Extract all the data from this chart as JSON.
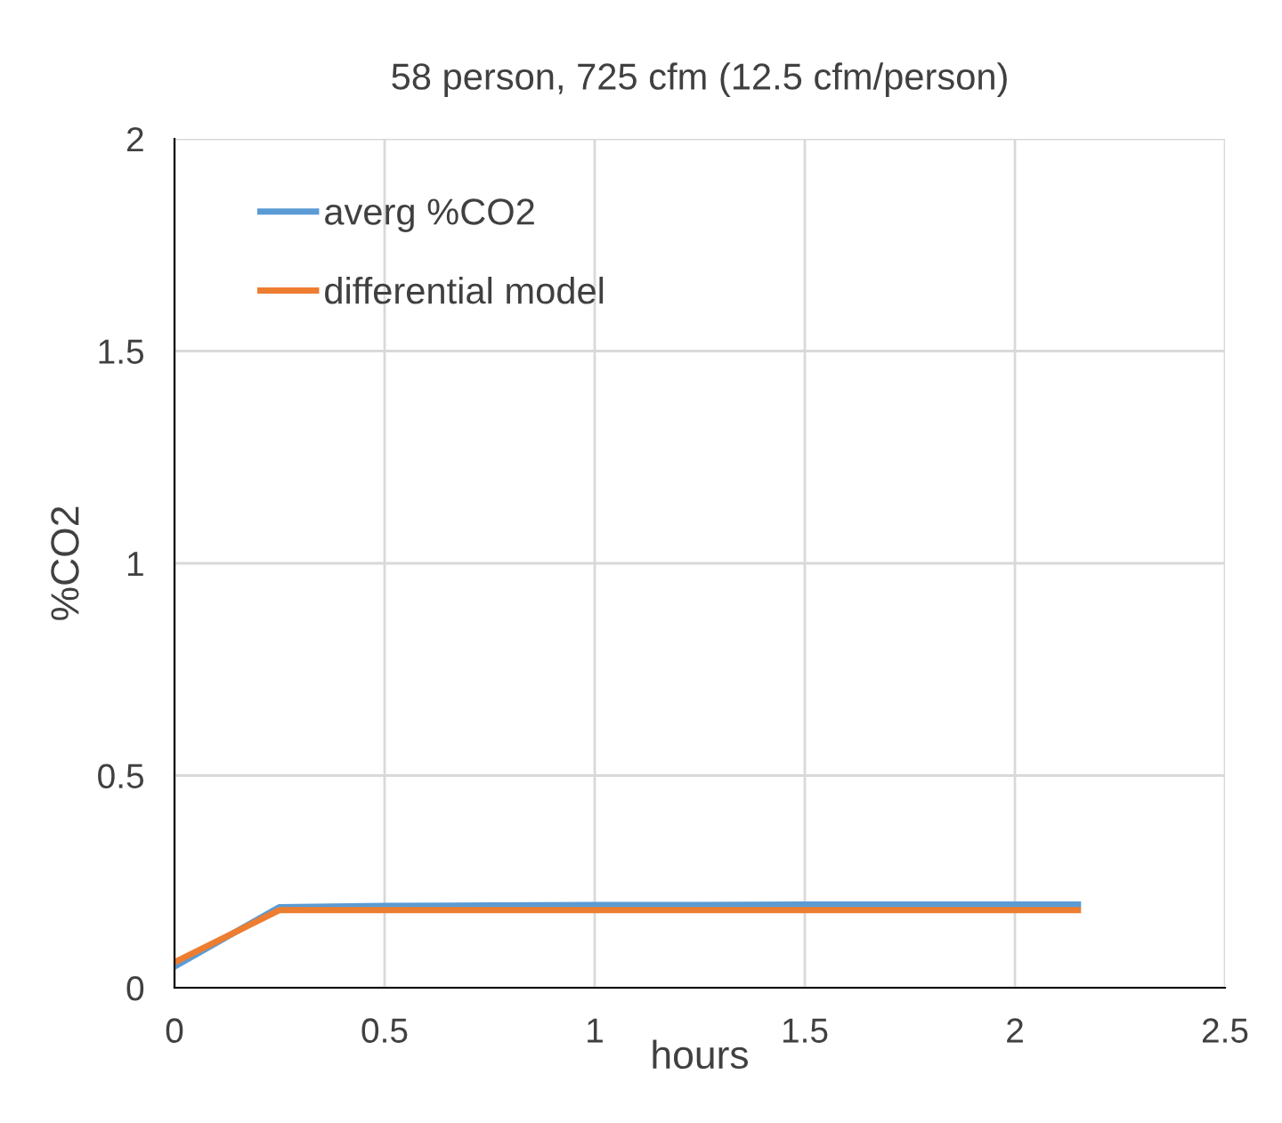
{
  "chart_data": {
    "type": "line",
    "title": "58 person, 725 cfm (12.5 cfm/person)",
    "xlabel": "hours",
    "ylabel": "%CO2",
    "series": [
      {
        "name": "averg %CO2",
        "color": "#5b9bd5",
        "x": [
          0,
          0.25,
          0.5,
          0.75,
          1,
          1.25,
          1.5,
          1.75,
          2,
          2.15
        ],
        "values": [
          0.05,
          0.19,
          0.193,
          0.194,
          0.195,
          0.195,
          0.196,
          0.196,
          0.196,
          0.196
        ]
      },
      {
        "name": "differential model",
        "color": "#ed7d31",
        "x": [
          0,
          0.25,
          0.5,
          1,
          1.5,
          2,
          2.15
        ],
        "values": [
          0.06,
          0.183,
          0.183,
          0.183,
          0.183,
          0.183,
          0.183
        ]
      }
    ],
    "xlim": [
      0,
      2.5
    ],
    "xticks": [
      0,
      0.5,
      1,
      1.5,
      2,
      2.5
    ],
    "ylim": [
      0,
      2
    ],
    "yticks": [
      0,
      0.5,
      1,
      1.5,
      2
    ],
    "grid": true,
    "legend": "top left",
    "marker": "none",
    "line_style": "solid"
  }
}
